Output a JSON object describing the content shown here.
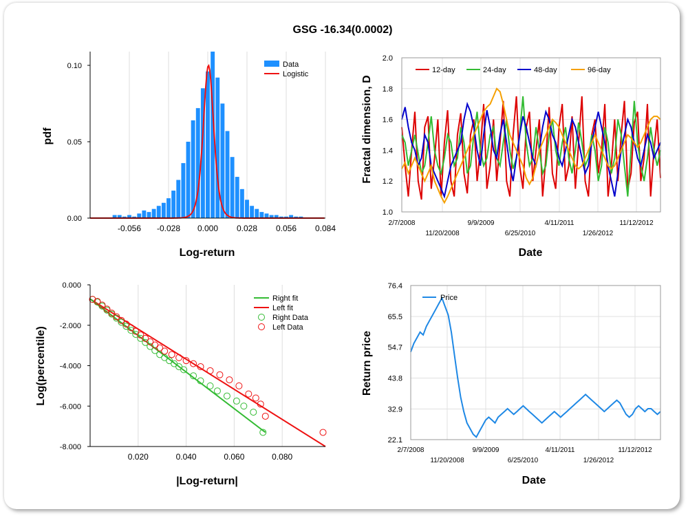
{
  "page_title": "GSG -16.34(0.0002)",
  "colors": {
    "data": "#1e90ff",
    "logistic": "#ee1111",
    "d12": "#dd0000",
    "d24": "#33bb33",
    "d48": "#0000cc",
    "d96": "#f5a000",
    "price": "#1e88e5",
    "right": "#33bb33",
    "left": "#ee1111"
  },
  "chart_data": [
    {
      "type": "bar",
      "title": "",
      "xlabel": "Log-return",
      "ylabel": "pdf",
      "x_ticks": [
        "-0.056",
        "-0.028",
        "0.000",
        "0.028",
        "0.056",
        "0.084"
      ],
      "y_ticks": [
        "0.00",
        "0.05",
        "0.10"
      ],
      "xlim": [
        -0.084,
        0.084
      ],
      "ylim": [
        0,
        0.109
      ],
      "bin_width": 0.0035,
      "bin_centers": [
        -0.0665,
        -0.063,
        -0.0595,
        -0.056,
        -0.0525,
        -0.049,
        -0.0455,
        -0.042,
        -0.0385,
        -0.035,
        -0.0315,
        -0.028,
        -0.0245,
        -0.021,
        -0.0175,
        -0.014,
        -0.0105,
        -0.007,
        -0.0035,
        0.0,
        0.0035,
        0.007,
        0.0105,
        0.014,
        0.0175,
        0.021,
        0.0245,
        0.028,
        0.0315,
        0.035,
        0.0385,
        0.042,
        0.0455,
        0.049,
        0.0525,
        0.056,
        0.0595,
        0.063,
        0.0665
      ],
      "values": [
        0.002,
        0.002,
        0.001,
        0.002,
        0.001,
        0.003,
        0.005,
        0.004,
        0.006,
        0.008,
        0.01,
        0.013,
        0.018,
        0.025,
        0.036,
        0.05,
        0.064,
        0.072,
        0.085,
        0.096,
        0.109,
        0.092,
        0.075,
        0.057,
        0.04,
        0.027,
        0.019,
        0.012,
        0.008,
        0.006,
        0.004,
        0.003,
        0.002,
        0.002,
        0.001,
        0.001,
        0.002,
        0.001,
        0.001
      ],
      "legend": [
        "Data",
        "Logistic"
      ],
      "logistic": {
        "mu": 0.0005,
        "s": 0.0025,
        "peak": 0.1
      }
    },
    {
      "type": "line",
      "title": "",
      "xlabel": "Date",
      "ylabel": "Fractal dimension, D",
      "x_ticks_top": [
        "2/7/2008",
        "9/9/2009",
        "4/11/2011",
        "11/12/2012"
      ],
      "x_ticks_bottom": [
        "11/20/2008",
        "6/25/2010",
        "1/26/2012"
      ],
      "y_ticks": [
        "1.0",
        "1.2",
        "1.4",
        "1.6",
        "1.8",
        "2.0"
      ],
      "ylim": [
        1.0,
        2.0
      ],
      "series": [
        {
          "name": "12-day",
          "values": [
            1.55,
            1.3,
            1.1,
            1.4,
            1.65,
            1.2,
            1.08,
            1.55,
            1.62,
            1.15,
            1.35,
            1.6,
            1.1,
            1.45,
            1.66,
            1.2,
            1.1,
            1.5,
            1.64,
            1.25,
            1.12,
            1.5,
            1.6,
            1.2,
            1.4,
            1.7,
            1.15,
            1.3,
            1.6,
            1.2,
            1.45,
            1.72,
            1.2,
            1.1,
            1.5,
            1.75,
            1.3,
            1.15,
            1.55,
            1.65,
            1.2,
            1.4,
            1.6,
            1.1,
            1.35,
            1.68,
            1.25,
            1.15,
            1.55,
            1.7,
            1.2,
            1.3,
            1.62,
            1.15,
            1.45,
            1.75,
            1.2,
            1.1,
            1.5,
            1.6,
            1.25,
            1.4,
            1.7,
            1.1,
            1.3,
            1.6,
            1.2,
            1.5,
            1.72,
            1.15,
            1.25,
            1.58,
            1.65,
            1.2,
            1.35,
            1.7,
            1.1,
            1.4,
            1.6,
            1.22
          ]
        },
        {
          "name": "24-day",
          "values": [
            1.5,
            1.45,
            1.3,
            1.4,
            1.5,
            1.38,
            1.25,
            1.3,
            1.45,
            1.62,
            1.4,
            1.3,
            1.25,
            1.35,
            1.5,
            1.45,
            1.3,
            1.35,
            1.55,
            1.45,
            1.25,
            1.3,
            1.5,
            1.65,
            1.4,
            1.3,
            1.35,
            1.5,
            1.55,
            1.35,
            1.3,
            1.45,
            1.6,
            1.4,
            1.28,
            1.35,
            1.5,
            1.75,
            1.45,
            1.3,
            1.35,
            1.55,
            1.4,
            1.25,
            1.3,
            1.5,
            1.6,
            1.4,
            1.3,
            1.45,
            1.55,
            1.35,
            1.25,
            1.4,
            1.58,
            1.45,
            1.3,
            1.35,
            1.5,
            1.4,
            1.2,
            1.3,
            1.55,
            1.45,
            1.25,
            1.35,
            1.6,
            1.5,
            1.3,
            1.1,
            1.4,
            1.72,
            1.45,
            1.3,
            1.2,
            1.35,
            1.55,
            1.4,
            1.3,
            1.4
          ]
        },
        {
          "name": "48-day",
          "values": [
            1.6,
            1.68,
            1.55,
            1.45,
            1.4,
            1.3,
            1.35,
            1.5,
            1.45,
            1.3,
            1.25,
            1.2,
            1.15,
            1.1,
            1.2,
            1.3,
            1.35,
            1.4,
            1.45,
            1.6,
            1.7,
            1.65,
            1.55,
            1.4,
            1.3,
            1.5,
            1.66,
            1.55,
            1.4,
            1.35,
            1.5,
            1.6,
            1.45,
            1.3,
            1.2,
            1.35,
            1.5,
            1.62,
            1.55,
            1.45,
            1.35,
            1.3,
            1.4,
            1.55,
            1.65,
            1.6,
            1.5,
            1.45,
            1.35,
            1.3,
            1.4,
            1.5,
            1.6,
            1.55,
            1.45,
            1.35,
            1.25,
            1.3,
            1.45,
            1.55,
            1.65,
            1.55,
            1.45,
            1.3,
            1.2,
            1.1,
            1.25,
            1.4,
            1.5,
            1.6,
            1.55,
            1.45,
            1.35,
            1.3,
            1.4,
            1.5,
            1.45,
            1.35,
            1.4,
            1.45
          ]
        },
        {
          "name": "96-day",
          "values": [
            1.28,
            1.32,
            1.25,
            1.3,
            1.35,
            1.3,
            1.25,
            1.2,
            1.25,
            1.3,
            1.2,
            1.15,
            1.1,
            1.06,
            1.1,
            1.15,
            1.2,
            1.25,
            1.3,
            1.35,
            1.4,
            1.45,
            1.5,
            1.55,
            1.6,
            1.65,
            1.68,
            1.7,
            1.75,
            1.8,
            1.78,
            1.7,
            1.6,
            1.5,
            1.45,
            1.4,
            1.35,
            1.3,
            1.22,
            1.18,
            1.22,
            1.3,
            1.4,
            1.45,
            1.5,
            1.55,
            1.6,
            1.58,
            1.55,
            1.5,
            1.45,
            1.4,
            1.35,
            1.3,
            1.28,
            1.3,
            1.35,
            1.4,
            1.45,
            1.5,
            1.45,
            1.4,
            1.35,
            1.3,
            1.28,
            1.3,
            1.35,
            1.4,
            1.45,
            1.5,
            1.48,
            1.45,
            1.42,
            1.45,
            1.5,
            1.55,
            1.6,
            1.62,
            1.62,
            1.6
          ]
        }
      ]
    },
    {
      "type": "scatter",
      "title": "",
      "xlabel": "|Log-return|",
      "ylabel": "Log(percentile)",
      "x_ticks": [
        "0.020",
        "0.040",
        "0.060",
        "0.080"
      ],
      "y_ticks": [
        "0.000",
        "-2.000",
        "-4.000",
        "-6.000",
        "-8.000"
      ],
      "xlim": [
        0,
        0.098
      ],
      "ylim": [
        -8,
        0
      ],
      "legend": [
        "Right fit",
        "Left fit",
        "Right Data",
        "Left Data"
      ],
      "right_fit": {
        "x": [
          0.0,
          0.073
        ],
        "y": [
          -0.7,
          -7.3
        ]
      },
      "left_fit": {
        "x": [
          0.0,
          0.098
        ],
        "y": [
          -0.7,
          -8.0
        ]
      },
      "right_data": {
        "x": [
          0.001,
          0.003,
          0.005,
          0.007,
          0.009,
          0.011,
          0.013,
          0.015,
          0.017,
          0.019,
          0.021,
          0.023,
          0.025,
          0.027,
          0.029,
          0.031,
          0.033,
          0.035,
          0.037,
          0.039,
          0.043,
          0.046,
          0.05,
          0.053,
          0.057,
          0.061,
          0.064,
          0.068,
          0.072
        ],
        "y": [
          -0.72,
          -0.85,
          -1.05,
          -1.25,
          -1.45,
          -1.65,
          -1.85,
          -2.05,
          -2.25,
          -2.45,
          -2.65,
          -2.85,
          -3.05,
          -3.25,
          -3.45,
          -3.6,
          -3.75,
          -3.9,
          -4.05,
          -4.2,
          -4.5,
          -4.75,
          -5.0,
          -5.25,
          -5.5,
          -5.75,
          -6.0,
          -6.3,
          -7.3
        ]
      },
      "left_data": {
        "x": [
          0.001,
          0.003,
          0.005,
          0.007,
          0.009,
          0.011,
          0.013,
          0.015,
          0.017,
          0.019,
          0.021,
          0.023,
          0.025,
          0.027,
          0.029,
          0.031,
          0.034,
          0.037,
          0.04,
          0.043,
          0.046,
          0.05,
          0.054,
          0.058,
          0.062,
          0.066,
          0.069,
          0.071,
          0.073,
          0.097
        ],
        "y": [
          -0.72,
          -0.82,
          -1.0,
          -1.2,
          -1.4,
          -1.58,
          -1.76,
          -1.94,
          -2.12,
          -2.3,
          -2.48,
          -2.65,
          -2.82,
          -2.98,
          -3.12,
          -3.28,
          -3.45,
          -3.6,
          -3.75,
          -3.9,
          -4.05,
          -4.25,
          -4.45,
          -4.7,
          -5.0,
          -5.4,
          -5.6,
          -5.9,
          -6.5,
          -7.3
        ]
      }
    },
    {
      "type": "line",
      "title": "",
      "xlabel": "Date",
      "ylabel": "Return price",
      "x_ticks_top": [
        "2/7/2008",
        "9/9/2009",
        "4/11/2011",
        "11/12/2012"
      ],
      "x_ticks_bottom": [
        "11/20/2008",
        "6/25/2010",
        "1/26/2012"
      ],
      "y_ticks": [
        "22.1",
        "32.9",
        "43.8",
        "54.7",
        "65.5",
        "76.4"
      ],
      "ylim": [
        22.1,
        76.4
      ],
      "legend": [
        "Price"
      ],
      "series": [
        {
          "name": "Price",
          "values": [
            53,
            56,
            58,
            60,
            59,
            62,
            64,
            66,
            68,
            70,
            72,
            69,
            66,
            60,
            52,
            44,
            37,
            32,
            28,
            26,
            24,
            23,
            25,
            27,
            29,
            30,
            29,
            28,
            30,
            31,
            32,
            33,
            32,
            31,
            32,
            33,
            34,
            33,
            32,
            31,
            30,
            29,
            28,
            29,
            30,
            31,
            32,
            31,
            30,
            31,
            32,
            33,
            34,
            35,
            36,
            37,
            38,
            37,
            36,
            35,
            34,
            33,
            32,
            33,
            34,
            35,
            36,
            35,
            33,
            31,
            30,
            31,
            33,
            34,
            33,
            32,
            33,
            33,
            32,
            31,
            32
          ]
        }
      ]
    }
  ]
}
